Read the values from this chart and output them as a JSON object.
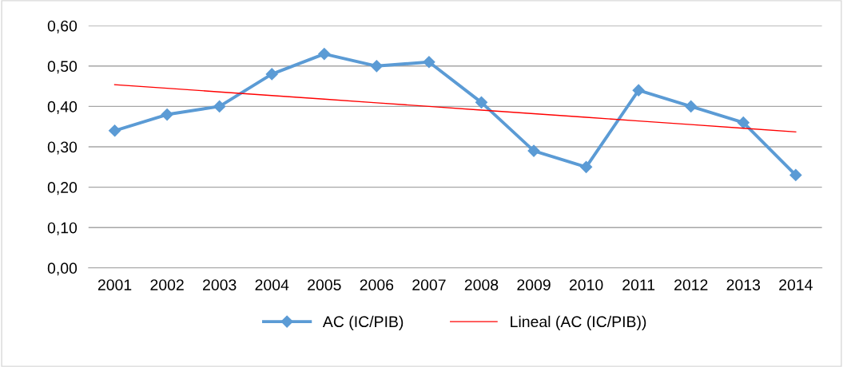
{
  "chart_data": {
    "type": "line",
    "categories": [
      "2001",
      "2002",
      "2003",
      "2004",
      "2005",
      "2006",
      "2007",
      "2008",
      "2009",
      "2010",
      "2011",
      "2012",
      "2013",
      "2014"
    ],
    "series": [
      {
        "name": "AC (IC/PIB)",
        "color": "#5b9bd5",
        "marker": "diamond",
        "values": [
          0.34,
          0.38,
          0.4,
          0.48,
          0.53,
          0.5,
          0.51,
          0.41,
          0.29,
          0.25,
          0.44,
          0.4,
          0.36,
          0.23
        ]
      },
      {
        "name": "Lineal (AC (IC/PIB))",
        "color": "#ff0000",
        "marker": "none",
        "values": [
          0.454,
          0.445,
          0.436,
          0.427,
          0.418,
          0.409,
          0.4,
          0.391,
          0.382,
          0.373,
          0.364,
          0.355,
          0.346,
          0.337
        ]
      }
    ],
    "ylim": [
      0,
      0.6
    ],
    "yticks": [
      {
        "value": 0,
        "label": "0,00"
      },
      {
        "value": 0.1,
        "label": "0,10"
      },
      {
        "value": 0.2,
        "label": "0,20"
      },
      {
        "value": 0.3,
        "label": "0,30"
      },
      {
        "value": 0.4,
        "label": "0,40"
      },
      {
        "value": 0.5,
        "label": "0,50"
      },
      {
        "value": 0.6,
        "label": "0,60"
      }
    ],
    "grid": "y",
    "legend": "bottom"
  }
}
